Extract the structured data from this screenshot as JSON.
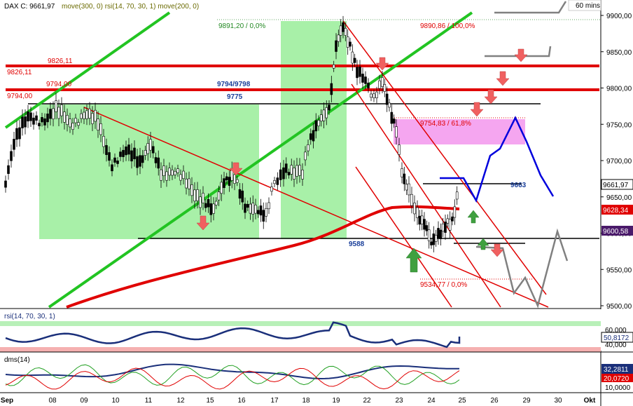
{
  "header": {
    "symbol": "DAX C: 9661,97",
    "indicators": "move(300, 0) rsi(14, 70, 30, 1) move(200, 0)",
    "timeframe": "60 mins"
  },
  "colors": {
    "background": "#ffffff",
    "green_zone": "#a8f0a8",
    "pink_zone": "#f5a6f0",
    "red_line": "#e00000",
    "green_line": "#22c422",
    "blue_path": "#0000dd",
    "grey_path": "#808080",
    "candle_up": "#000000",
    "candle_down": "#000000",
    "rsi_line": "#1a2f7a",
    "arrow_red": "#f06060",
    "arrow_green": "#40a040"
  },
  "chart_data": [
    {
      "type": "candlestick",
      "panel": "price",
      "ylim": [
        9495,
        9905
      ],
      "y_ticks": [
        9500,
        9550,
        9600,
        9650,
        9700,
        9750,
        9800,
        9850,
        9900
      ],
      "y_tick_labels": [
        "9500,00",
        "9550,00",
        "9600,00",
        "9650,00",
        "9700,00",
        "9750,00",
        "9800,00",
        "9850,00",
        "9900,00"
      ],
      "x_labels": [
        "Sep",
        "08",
        "09",
        "10",
        "11",
        "12",
        "15",
        "16",
        "17",
        "18",
        "19",
        "22",
        "23",
        "24",
        "25",
        "26",
        "29",
        "30",
        "Okt"
      ],
      "price_badges": [
        "9661,97",
        "9628,34",
        "9600,58"
      ],
      "horizontal_levels": [
        {
          "label": "9826,11",
          "value": 9826.11
        },
        {
          "label": "9794,00",
          "value": 9794.0
        },
        {
          "label": "9794/9798",
          "value": 9796
        },
        {
          "label": "9775",
          "value": 9775
        },
        {
          "label": "9663",
          "value": 9663
        },
        {
          "label": "9588",
          "value": 9588
        }
      ],
      "fib_labels": [
        "9891,20 / 0,0%",
        "9890,86 / 100,0%",
        "9754,83 / 61,8%",
        "9534,77 / 0,0%"
      ],
      "annotations": [
        "9826,11",
        "9794,00",
        "9794/9798",
        "9775",
        "9588",
        "9663"
      ],
      "moving_average_200": {
        "start": 9495,
        "end": 9628.34
      }
    },
    {
      "type": "line",
      "panel": "rsi",
      "title": "rsi(14, 70, 30, 1)",
      "ylim": [
        30,
        70
      ],
      "y_tick_labels": [
        "60,000",
        "50,8172",
        "40,000"
      ],
      "current_value": "50,8172"
    },
    {
      "type": "line",
      "panel": "dms",
      "title": "dms(14)",
      "y_tick_labels": [
        "32,2811",
        "20,0720",
        "10,0000"
      ],
      "series": [
        {
          "value": "32,2811"
        },
        {
          "value": "20,0720"
        }
      ]
    }
  ]
}
